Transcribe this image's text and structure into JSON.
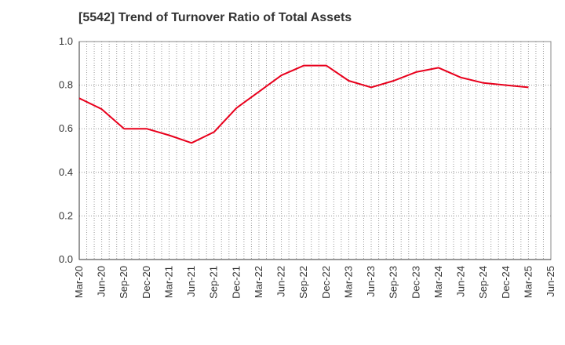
{
  "chart_data": {
    "type": "line",
    "title": "[5542]  Trend of Turnover Ratio of Total Assets",
    "xlabel": "",
    "ylabel": "",
    "ylim": [
      0,
      1.0
    ],
    "yticks": [
      "0.0",
      "0.2",
      "0.4",
      "0.6",
      "0.8",
      "1.0"
    ],
    "grid": true,
    "legend": "none",
    "categories": [
      "Mar-20",
      "Jun-20",
      "Sep-20",
      "Dec-20",
      "Mar-21",
      "Jun-21",
      "Sep-21",
      "Dec-21",
      "Mar-22",
      "Jun-22",
      "Sep-22",
      "Dec-22",
      "Mar-23",
      "Jun-23",
      "Sep-23",
      "Dec-23",
      "Mar-24",
      "Jun-24",
      "Sep-24",
      "Dec-24",
      "Mar-25",
      "Jun-25"
    ],
    "series": [
      {
        "color": "#e8001c",
        "values": [
          0.74,
          0.69,
          0.6,
          0.6,
          0.57,
          0.535,
          0.585,
          0.695,
          0.77,
          0.845,
          0.89,
          0.89,
          0.82,
          0.79,
          0.82,
          0.86,
          0.88,
          0.835,
          0.81,
          0.8,
          0.79,
          null
        ]
      }
    ]
  }
}
